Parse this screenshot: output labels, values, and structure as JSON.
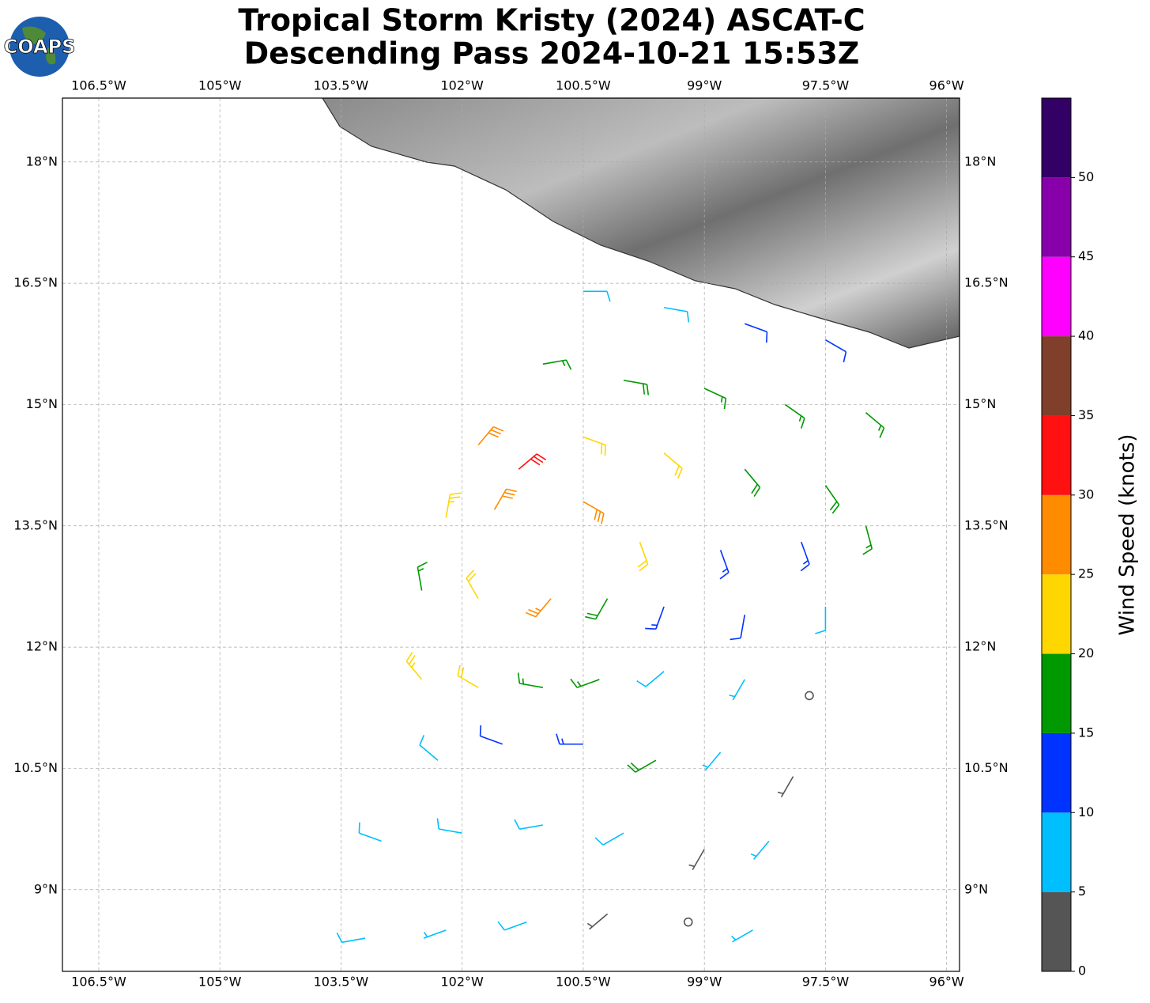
{
  "chart_data": {
    "type": "barb-map",
    "logo": "COAPS",
    "title": [
      "Tropical Storm Kristy (2024) ASCAT-C",
      "Descending Pass 2024-10-21 15:53Z"
    ],
    "xlim": [
      -106.95,
      -95.84
    ],
    "ylim": [
      7.99,
      18.79
    ],
    "xticks": [
      {
        "value": -106.5,
        "label": "106.5°W"
      },
      {
        "value": -105,
        "label": "105°W"
      },
      {
        "value": -103.5,
        "label": "103.5°W"
      },
      {
        "value": -102,
        "label": "102°W"
      },
      {
        "value": -100.5,
        "label": "100.5°W"
      },
      {
        "value": -99,
        "label": "99°W"
      },
      {
        "value": -97.5,
        "label": "97.5°W"
      },
      {
        "value": -96,
        "label": "96°W"
      }
    ],
    "yticks": [
      {
        "value": 9,
        "label": "9°N"
      },
      {
        "value": 10.5,
        "label": "10.5°N"
      },
      {
        "value": 12,
        "label": "12°N"
      },
      {
        "value": 13.5,
        "label": "13.5°N"
      },
      {
        "value": 15,
        "label": "15°N"
      },
      {
        "value": 16.5,
        "label": "16.5°N"
      },
      {
        "value": 18,
        "label": "18°N"
      }
    ],
    "grid": true,
    "barbs": {
      "lon": [
        -101.0,
        -100.0,
        -99.0,
        -98.0,
        -97.0,
        -100.5,
        -99.5,
        -98.5,
        -97.5,
        -101.8,
        -101.3,
        -100.5,
        -99.5,
        -98.5,
        -97.5,
        -102.2,
        -101.6,
        -100.5,
        -99.8,
        -98.8,
        -97.8,
        -97.0,
        -102.5,
        -101.8,
        -100.9,
        -100.2,
        -99.5,
        -98.5,
        -97.5,
        -102.5,
        -101.8,
        -101.0,
        -100.3,
        -99.5,
        -98.5,
        -97.7,
        -102.3,
        -101.5,
        -100.5,
        -99.6,
        -98.8,
        -97.9,
        -103.0,
        -102.0,
        -101.0,
        -100.0,
        -99.0,
        -98.2,
        -103.2,
        -102.2,
        -101.2,
        -100.2,
        -99.2,
        -98.4
      ],
      "lat": [
        15.5,
        15.3,
        15.2,
        15.0,
        14.9,
        16.4,
        16.2,
        16.0,
        15.8,
        14.5,
        14.2,
        14.6,
        14.4,
        14.2,
        14.0,
        13.6,
        13.7,
        13.8,
        13.3,
        13.2,
        13.3,
        13.5,
        12.7,
        12.6,
        12.6,
        12.6,
        12.5,
        12.4,
        12.5,
        11.6,
        11.5,
        11.5,
        11.6,
        11.7,
        11.6,
        11.4,
        10.6,
        10.8,
        10.8,
        10.6,
        10.7,
        10.4,
        9.6,
        9.7,
        9.8,
        9.7,
        9.5,
        9.6,
        8.4,
        8.5,
        8.6,
        8.7,
        8.6,
        8.5
      ],
      "speed": [
        17,
        18,
        17,
        17,
        17,
        8,
        9,
        12,
        10,
        28,
        32,
        22,
        22,
        18,
        18,
        24,
        28,
        28,
        20,
        14,
        14,
        17,
        17,
        22,
        26,
        18,
        14,
        10,
        8,
        24,
        22,
        17,
        17,
        9,
        6,
        2,
        8,
        12,
        13,
        18,
        7,
        4,
        8,
        8,
        9,
        8,
        4,
        7,
        8,
        7,
        9,
        4,
        2,
        5
      ],
      "dir": [
        80,
        100,
        115,
        125,
        130,
        90,
        100,
        110,
        120,
        40,
        50,
        110,
        130,
        140,
        145,
        10,
        30,
        120,
        160,
        160,
        160,
        165,
        350,
        330,
        220,
        210,
        200,
        190,
        180,
        320,
        300,
        280,
        250,
        230,
        210,
        200,
        310,
        290,
        270,
        240,
        220,
        210,
        290,
        280,
        260,
        240,
        210,
        220,
        260,
        250,
        250,
        230,
        200,
        240
      ]
    },
    "colorbar": {
      "label": "Wind Speed (knots)",
      "bounds": [
        0,
        5,
        10,
        15,
        20,
        25,
        30,
        35,
        40,
        45,
        50,
        55
      ],
      "colors": [
        "#555555",
        "#00bfff",
        "#0033ff",
        "#009900",
        "#ffd700",
        "#ff8c00",
        "#ff1111",
        "#7f3f2a",
        "#ff00ff",
        "#8800aa",
        "#330066"
      ],
      "ticks": [
        0,
        5,
        10,
        15,
        20,
        25,
        30,
        35,
        40,
        45,
        50
      ]
    }
  }
}
